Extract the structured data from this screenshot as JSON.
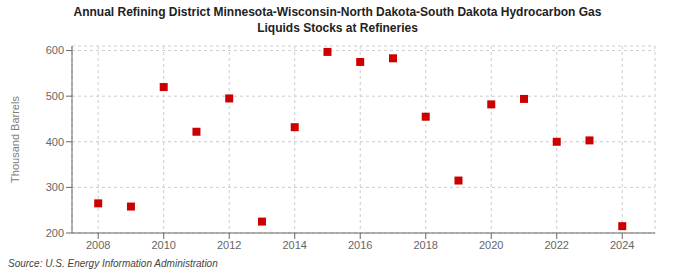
{
  "chart_data": {
    "type": "scatter",
    "title": "Annual Refining District Minnesota-Wisconsin-North Dakota-South Dakota Hydrocarbon Gas\nLiquids Stocks at Refineries",
    "ylabel": "Thousand Barrels",
    "annotations": [
      "Source: U.S. Energy Information Administration"
    ],
    "x": [
      2008,
      2009,
      2010,
      2011,
      2012,
      2013,
      2014,
      2015,
      2016,
      2017,
      2018,
      2019,
      2020,
      2021,
      2022,
      2023,
      2024
    ],
    "values": [
      265,
      258,
      520,
      422,
      495,
      225,
      432,
      597,
      575,
      583,
      455,
      315,
      482,
      494,
      400,
      403,
      215
    ],
    "color": "#cc0000",
    "marker": "square",
    "xlim": [
      2007.2,
      2025
    ],
    "ylim": [
      200,
      610
    ],
    "xticks": [
      2008,
      2010,
      2012,
      2014,
      2016,
      2018,
      2020,
      2022,
      2024
    ],
    "yticks": [
      200,
      300,
      400,
      500,
      600
    ],
    "grid": true
  }
}
